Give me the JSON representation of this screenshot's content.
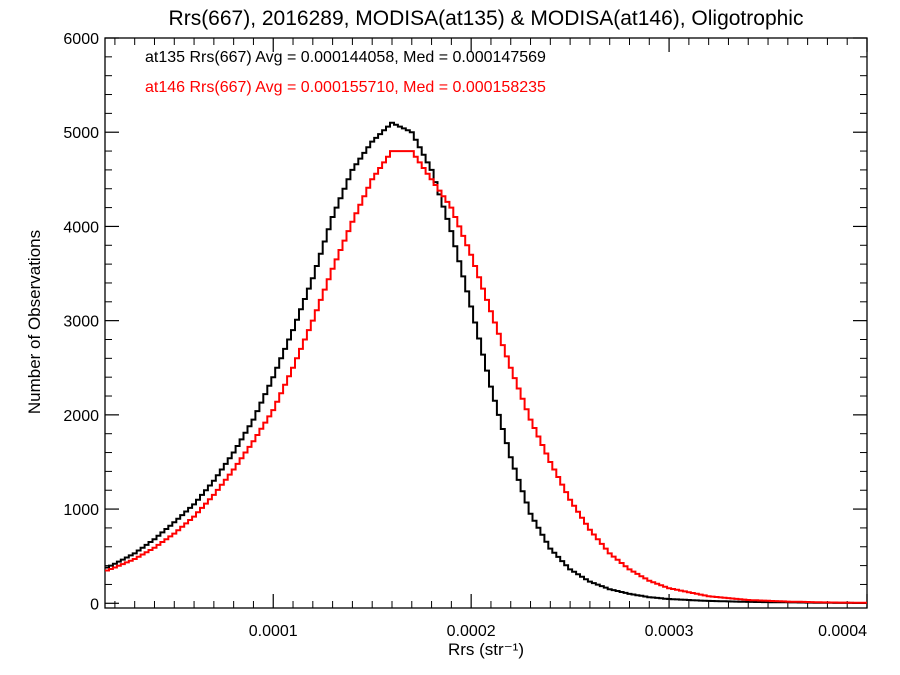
{
  "chart_data": {
    "type": "histogram-step",
    "title": "Rrs(667), 2016289, MODISA(at135) & MODISA(at146), Oligotrophic",
    "xlabel": "Rrs (str⁻¹)",
    "ylabel": "Number of Observations",
    "xlim": [
      1.5e-05,
      0.0004
    ],
    "ylim": [
      -50,
      6000
    ],
    "xticks": [
      0.0001,
      0.0002,
      0.0003,
      0.0004
    ],
    "xtick_labels": [
      "0.0001",
      "0.0002",
      "0.0003",
      "0.0004"
    ],
    "yticks": [
      0,
      1000,
      2000,
      3000,
      4000,
      5000,
      6000
    ],
    "ytick_labels": [
      "0",
      "1000",
      "2000",
      "3000",
      "4000",
      "5000",
      "6000"
    ],
    "grid": false,
    "legend_position": "top-left",
    "series": [
      {
        "name": "at135",
        "legend_label": "at135 Rrs(667) Avg = 0.000144058, Med = 0.000147569",
        "color": "#000000",
        "points": [
          [
            1.5e-05,
            370
          ],
          [
            2e-05,
            420
          ],
          [
            3e-05,
            530
          ],
          [
            4e-05,
            680
          ],
          [
            5e-05,
            860
          ],
          [
            6e-05,
            1050
          ],
          [
            7e-05,
            1300
          ],
          [
            8e-05,
            1600
          ],
          [
            9e-05,
            1950
          ],
          [
            0.0001,
            2400
          ],
          [
            0.00011,
            2900
          ],
          [
            0.00012,
            3450
          ],
          [
            0.00013,
            4100
          ],
          [
            0.00014,
            4600
          ],
          [
            0.00015,
            4900
          ],
          [
            0.00016,
            5100
          ],
          [
            0.00017,
            5000
          ],
          [
            0.00018,
            4600
          ],
          [
            0.00019,
            3950
          ],
          [
            0.0002,
            3150
          ],
          [
            0.00021,
            2300
          ],
          [
            0.00022,
            1550
          ],
          [
            0.00023,
            950
          ],
          [
            0.00024,
            580
          ],
          [
            0.00025,
            360
          ],
          [
            0.00026,
            230
          ],
          [
            0.00027,
            150
          ],
          [
            0.00028,
            100
          ],
          [
            0.00029,
            65
          ],
          [
            0.0003,
            45
          ],
          [
            0.00032,
            25
          ],
          [
            0.00034,
            15
          ],
          [
            0.00036,
            10
          ],
          [
            0.00038,
            5
          ],
          [
            0.0004,
            3
          ]
        ]
      },
      {
        "name": "at146",
        "legend_label": "at146 Rrs(667) Avg = 0.000155710, Med = 0.000158235",
        "color": "#ff0000",
        "points": [
          [
            1.5e-05,
            340
          ],
          [
            2e-05,
            380
          ],
          [
            3e-05,
            470
          ],
          [
            4e-05,
            590
          ],
          [
            5e-05,
            740
          ],
          [
            6e-05,
            920
          ],
          [
            7e-05,
            1150
          ],
          [
            8e-05,
            1420
          ],
          [
            9e-05,
            1720
          ],
          [
            0.0001,
            2050
          ],
          [
            0.00011,
            2500
          ],
          [
            0.00012,
            3000
          ],
          [
            0.00013,
            3550
          ],
          [
            0.00014,
            4050
          ],
          [
            0.00015,
            4500
          ],
          [
            0.00016,
            4800
          ],
          [
            0.00017,
            4800
          ],
          [
            0.00018,
            4500
          ],
          [
            0.00019,
            4200
          ],
          [
            0.0002,
            3700
          ],
          [
            0.00021,
            3100
          ],
          [
            0.00022,
            2500
          ],
          [
            0.00023,
            1950
          ],
          [
            0.00024,
            1500
          ],
          [
            0.00025,
            1100
          ],
          [
            0.00026,
            780
          ],
          [
            0.00027,
            530
          ],
          [
            0.00028,
            360
          ],
          [
            0.00029,
            240
          ],
          [
            0.0003,
            160
          ],
          [
            0.00032,
            75
          ],
          [
            0.00034,
            35
          ],
          [
            0.00036,
            18
          ],
          [
            0.00038,
            9
          ],
          [
            0.0004,
            5
          ]
        ]
      }
    ]
  }
}
